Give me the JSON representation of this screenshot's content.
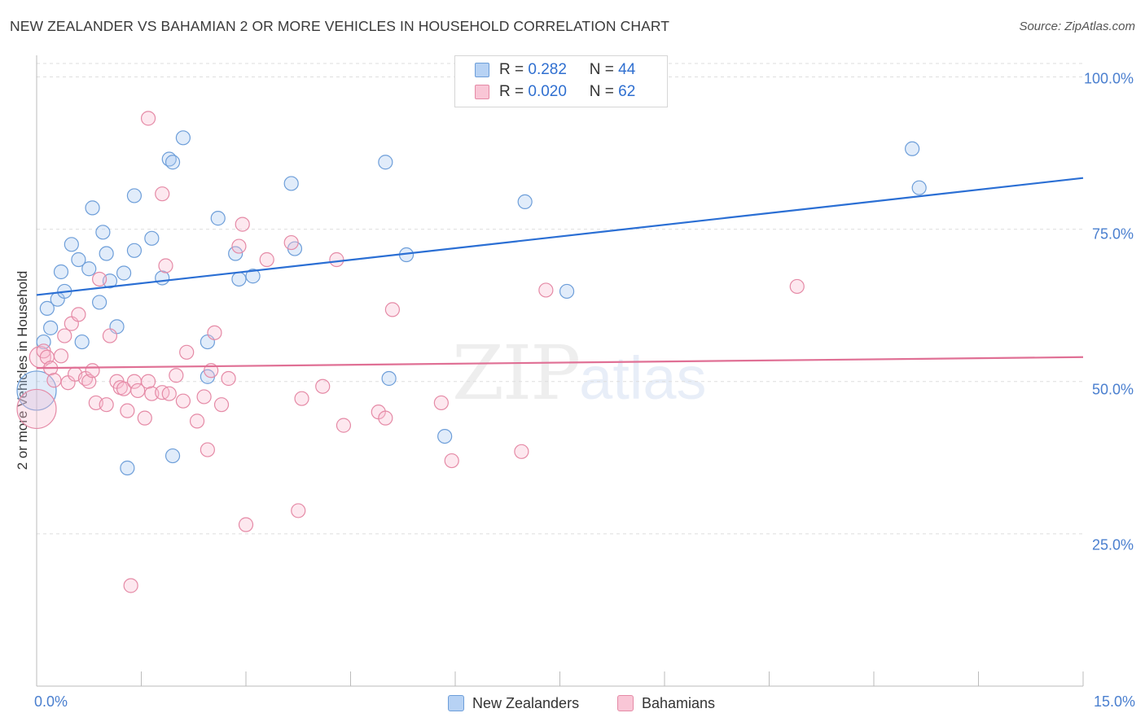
{
  "title": "NEW ZEALANDER VS BAHAMIAN 2 OR MORE VEHICLES IN HOUSEHOLD CORRELATION CHART",
  "source": "Source: ZipAtlas.com",
  "watermark": {
    "part1": "ZIP",
    "part2": "atlas"
  },
  "legend": {
    "rows": [
      {
        "r_label": "R =",
        "r_value": "0.282",
        "n_label": "N =",
        "n_value": "44"
      },
      {
        "r_label": "R =",
        "r_value": "0.020",
        "n_label": "N =",
        "n_value": "62"
      }
    ]
  },
  "chart_data": {
    "type": "scatter",
    "title": "NEW ZEALANDER VS BAHAMIAN 2 OR MORE VEHICLES IN HOUSEHOLD CORRELATION CHART",
    "xlabel": "",
    "ylabel": "2 or more Vehicles in Household",
    "xlim": [
      0,
      15
    ],
    "ylim": [
      0,
      103
    ],
    "x_tick_labels": [
      "0.0%",
      "15.0%"
    ],
    "y_ticks": [
      25,
      50,
      75,
      100
    ],
    "y_tick_labels": [
      "25.0%",
      "50.0%",
      "75.0%",
      "100.0%"
    ],
    "grid": true,
    "legend_position": "top-center",
    "colors": {
      "New Zealanders": "#6d9ed9",
      "Bahamians": "#e58aa6",
      "nz_line": "#2b6fd4",
      "bh_line": "#e07095"
    },
    "series": [
      {
        "name": "New Zealanders",
        "r": 0.282,
        "n": 44,
        "trend": [
          [
            0,
            64.2
          ],
          [
            15,
            83.4
          ]
        ],
        "points": [
          [
            0.0,
            48.5,
            3
          ],
          [
            0.1,
            56.5,
            1
          ],
          [
            0.15,
            62.0,
            1
          ],
          [
            0.2,
            58.8,
            1
          ],
          [
            0.3,
            63.5,
            1
          ],
          [
            0.35,
            68.0,
            1
          ],
          [
            0.4,
            64.8,
            1
          ],
          [
            0.5,
            72.5,
            1
          ],
          [
            0.6,
            70.0,
            1
          ],
          [
            0.65,
            56.5,
            1
          ],
          [
            0.75,
            68.5,
            1
          ],
          [
            0.8,
            78.5,
            1
          ],
          [
            0.9,
            63.0,
            1
          ],
          [
            0.95,
            74.5,
            1
          ],
          [
            1.0,
            71.0,
            1
          ],
          [
            1.05,
            66.5,
            1
          ],
          [
            1.15,
            59.0,
            1
          ],
          [
            1.25,
            67.8,
            1
          ],
          [
            1.3,
            35.8,
            1
          ],
          [
            1.4,
            71.5,
            1
          ],
          [
            1.4,
            80.5,
            1
          ],
          [
            1.65,
            73.5,
            1
          ],
          [
            1.8,
            67.0,
            1
          ],
          [
            1.9,
            86.5,
            1
          ],
          [
            1.95,
            37.8,
            1
          ],
          [
            1.95,
            86.0,
            1
          ],
          [
            2.1,
            90.0,
            1
          ],
          [
            2.45,
            56.5,
            1
          ],
          [
            2.45,
            50.8,
            1
          ],
          [
            2.6,
            76.8,
            1
          ],
          [
            2.85,
            71.0,
            1
          ],
          [
            2.9,
            66.8,
            1
          ],
          [
            3.1,
            67.3,
            1
          ],
          [
            3.65,
            82.5,
            1
          ],
          [
            3.7,
            71.8,
            1
          ],
          [
            5.0,
            86.0,
            1
          ],
          [
            5.05,
            50.5,
            1
          ],
          [
            5.3,
            70.8,
            1
          ],
          [
            5.85,
            41.0,
            1
          ],
          [
            7.0,
            79.5,
            1
          ],
          [
            7.6,
            64.8,
            1
          ],
          [
            12.55,
            88.2,
            1
          ],
          [
            12.65,
            81.8,
            1
          ]
        ]
      },
      {
        "name": "Bahamians",
        "r": 0.02,
        "n": 62,
        "trend": [
          [
            0,
            52.2
          ],
          [
            15,
            54.0
          ]
        ],
        "points": [
          [
            0.0,
            45.5,
            3
          ],
          [
            0.05,
            54.0,
            2
          ],
          [
            0.1,
            55.0,
            1
          ],
          [
            0.15,
            54.0,
            1
          ],
          [
            0.2,
            52.2,
            1
          ],
          [
            0.25,
            50.2,
            1
          ],
          [
            0.35,
            54.2,
            1
          ],
          [
            0.4,
            57.5,
            1
          ],
          [
            0.45,
            49.8,
            1
          ],
          [
            0.5,
            59.5,
            1
          ],
          [
            0.55,
            51.2,
            1
          ],
          [
            0.6,
            61.0,
            1
          ],
          [
            0.7,
            50.5,
            1
          ],
          [
            0.75,
            50.0,
            1
          ],
          [
            0.8,
            51.8,
            1
          ],
          [
            0.85,
            46.5,
            1
          ],
          [
            0.9,
            66.8,
            1
          ],
          [
            1.0,
            46.2,
            1
          ],
          [
            1.05,
            57.5,
            1
          ],
          [
            1.15,
            50.0,
            1
          ],
          [
            1.2,
            49.0,
            1
          ],
          [
            1.25,
            48.8,
            1
          ],
          [
            1.3,
            45.2,
            1
          ],
          [
            1.35,
            16.5,
            1
          ],
          [
            1.4,
            50.0,
            1
          ],
          [
            1.45,
            48.5,
            1
          ],
          [
            1.55,
            44.0,
            1
          ],
          [
            1.6,
            50.0,
            1
          ],
          [
            1.6,
            93.2,
            1
          ],
          [
            1.65,
            48.0,
            1
          ],
          [
            1.8,
            48.2,
            1
          ],
          [
            1.8,
            80.8,
            1
          ],
          [
            1.85,
            69.0,
            1
          ],
          [
            1.9,
            48.0,
            1
          ],
          [
            2.0,
            51.0,
            1
          ],
          [
            2.1,
            46.8,
            1
          ],
          [
            2.15,
            54.8,
            1
          ],
          [
            2.3,
            43.5,
            1
          ],
          [
            2.4,
            47.5,
            1
          ],
          [
            2.45,
            38.8,
            1
          ],
          [
            2.5,
            51.8,
            1
          ],
          [
            2.55,
            58.0,
            1
          ],
          [
            2.65,
            46.2,
            1
          ],
          [
            2.75,
            50.5,
            1
          ],
          [
            2.9,
            72.2,
            1
          ],
          [
            2.95,
            75.8,
            1
          ],
          [
            3.0,
            26.5,
            1
          ],
          [
            3.3,
            70.0,
            1
          ],
          [
            3.65,
            72.8,
            1
          ],
          [
            3.75,
            28.8,
            1
          ],
          [
            3.8,
            47.2,
            1
          ],
          [
            4.1,
            49.2,
            1
          ],
          [
            4.3,
            70.0,
            1
          ],
          [
            4.4,
            42.8,
            1
          ],
          [
            4.9,
            45.0,
            1
          ],
          [
            5.0,
            44.0,
            1
          ],
          [
            5.1,
            61.8,
            1
          ],
          [
            5.8,
            46.5,
            1
          ],
          [
            5.95,
            37.0,
            1
          ],
          [
            6.95,
            38.5,
            1
          ],
          [
            7.3,
            65.0,
            1
          ],
          [
            10.9,
            65.6,
            1
          ]
        ]
      }
    ]
  },
  "bottom_legend": [
    "New Zealanders",
    "Bahamians"
  ]
}
